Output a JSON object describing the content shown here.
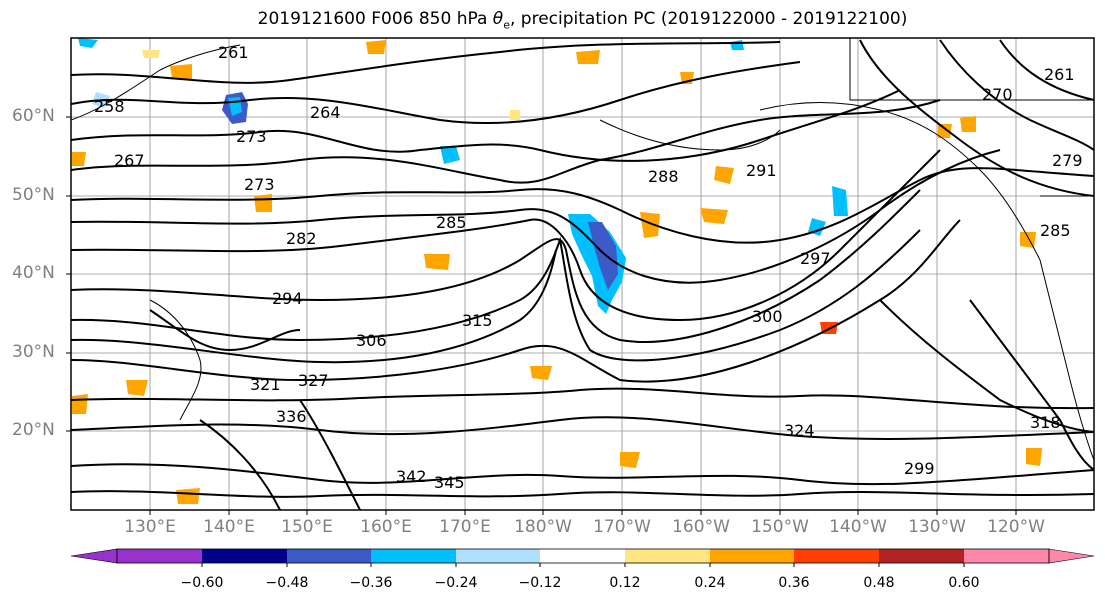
{
  "title": "2019121600 F006 850 hPa θe, precipitation PC (2019122000 - 2019122100)",
  "title_parts": {
    "prefix": "2019121600 F006 850 hPa ",
    "theta": "θ",
    "sub": "e",
    "suffix": ", precipitation PC (2019122000 - 2019122100)"
  },
  "lat_labels": [
    "60°N",
    "50°N",
    "40°N",
    "30°N",
    "20°N"
  ],
  "lon_labels": [
    "130°E",
    "140°E",
    "150°E",
    "160°E",
    "170°E",
    "180°W",
    "170°W",
    "160°W",
    "150°W",
    "140°W",
    "130°W",
    "120°W"
  ],
  "contour_labels": [
    "261",
    "273",
    "264",
    "258",
    "267",
    "273",
    "282",
    "285",
    "288",
    "291",
    "294",
    "297",
    "300",
    "306",
    "315",
    "321",
    "324",
    "327",
    "336",
    "342",
    "345",
    "285",
    "279",
    "270",
    "261",
    "299",
    "318"
  ],
  "colorbar": {
    "labels": [
      "−0.60",
      "−0.48",
      "−0.36",
      "−0.24",
      "−0.12",
      "0.12",
      "0.24",
      "0.36",
      "0.48",
      "0.60"
    ],
    "colors": [
      "#9932cc",
      "#00008b",
      "#3c5ac8",
      "#00bfff",
      "#b0e0ff",
      "#ffffff",
      "#ffe680",
      "#ffa500",
      "#ff4000",
      "#b22222",
      "#ff88aa"
    ],
    "extend": "both"
  },
  "colors": {
    "land_outline": "#000000",
    "grid": "#909090",
    "contour": "#000000",
    "tick_label": "#808080"
  }
}
